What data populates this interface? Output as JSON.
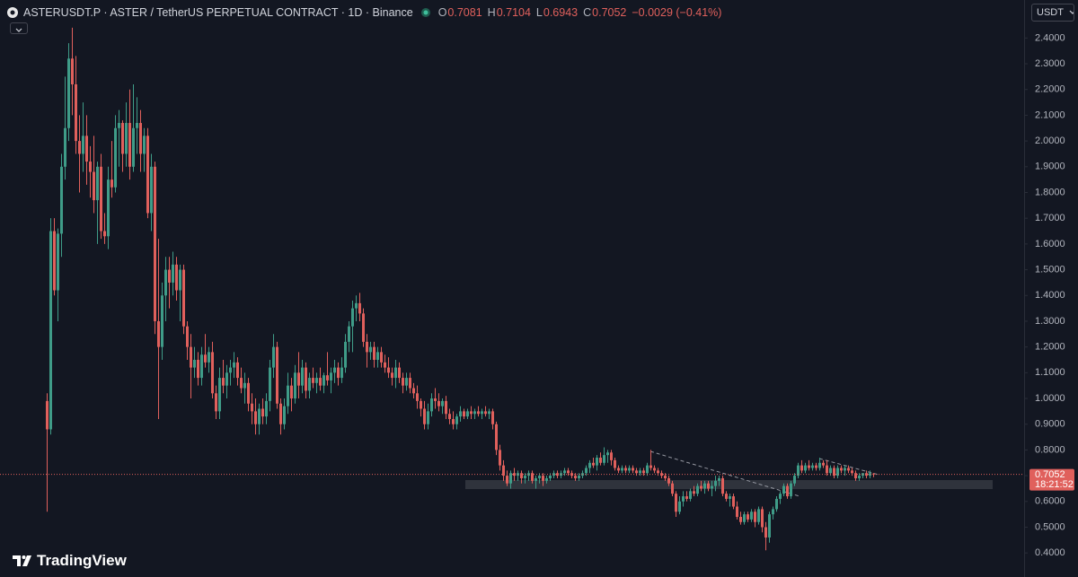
{
  "chart_data": {
    "type": "candlestick",
    "title": "ASTERUSDT.P · ASTER / TetherUS PERPETUAL CONTRACT · 1D · Binance",
    "ohlc_labels": [
      "O",
      "H",
      "L",
      "C"
    ],
    "change": "−0.0029 (−0.41%)",
    "countdown": "18:21:52",
    "currency": "USDT",
    "brand": "TradingView",
    "up_color": "#3f9c88",
    "down_color": "#e0605c",
    "ylim": [
      0.31,
      2.45
    ],
    "yticks": [
      {
        "value": 0.4,
        "label": "0.4000"
      },
      {
        "value": 0.5,
        "label": "0.5000"
      },
      {
        "value": 0.6,
        "label": "0.6000"
      },
      {
        "value": 0.7,
        "label": "0.7000"
      },
      {
        "value": 0.8,
        "label": "0.8000"
      },
      {
        "value": 0.9,
        "label": "0.9000"
      },
      {
        "value": 1.0,
        "label": "1.0000"
      },
      {
        "value": 1.1,
        "label": "1.1000"
      },
      {
        "value": 1.2,
        "label": "1.2000"
      },
      {
        "value": 1.3,
        "label": "1.3000"
      },
      {
        "value": 1.4,
        "label": "1.4000"
      },
      {
        "value": 1.5,
        "label": "1.5000"
      },
      {
        "value": 1.6,
        "label": "1.6000"
      },
      {
        "value": 1.7,
        "label": "1.7000"
      },
      {
        "value": 1.8,
        "label": "1.8000"
      },
      {
        "value": 1.9,
        "label": "1.9000"
      },
      {
        "value": 2.0,
        "label": "2.0000"
      },
      {
        "value": 2.1,
        "label": "2.1000"
      },
      {
        "value": 2.2,
        "label": "2.2000"
      },
      {
        "value": 2.3,
        "label": "2.3000"
      },
      {
        "value": 2.4,
        "label": "2.4000"
      }
    ],
    "open": [
      0.99,
      0.88,
      1.65,
      1.42,
      1.64,
      1.9,
      2.05,
      2.32,
      2.22,
      2.0,
      1.95,
      2.02,
      1.92,
      1.88,
      1.77,
      1.9,
      1.65,
      1.63,
      1.85,
      1.82,
      2.05,
      2.07,
      1.95,
      2.07,
      1.9,
      2.05,
      2.07,
      1.95,
      2.02,
      1.72,
      1.9,
      1.3,
      1.2,
      1.4,
      1.5,
      1.45,
      1.52,
      1.42,
      1.5,
      1.28,
      1.2,
      1.12,
      1.15,
      1.08,
      1.17,
      1.14,
      1.18,
      1.02,
      0.95,
      1.08,
      1.05,
      1.1,
      1.12,
      1.14,
      1.08,
      1.04,
      1.06,
      0.98,
      0.95,
      0.9,
      0.96,
      0.93,
      0.99,
      1.12,
      1.2,
      0.98,
      0.9,
      0.97,
      1.05,
      1.0,
      1.1,
      1.05,
      1.12,
      1.03,
      1.08,
      1.06,
      1.08,
      1.05,
      1.09,
      1.07,
      1.1,
      1.12,
      1.08,
      1.12,
      1.22,
      1.28,
      1.35,
      1.37,
      1.33,
      1.22,
      1.18,
      1.2,
      1.15,
      1.18,
      1.14,
      1.12,
      1.1,
      1.08,
      1.12,
      1.08,
      1.05,
      1.08,
      1.04,
      1.02,
      0.99,
      0.96,
      0.9,
      0.95,
      1.0,
      0.99,
      0.97,
      0.99,
      0.94,
      0.92,
      0.9,
      0.93,
      0.95,
      0.93,
      0.95,
      0.94,
      0.95,
      0.94,
      0.95,
      0.94,
      0.95,
      0.9,
      0.8,
      0.74,
      0.7,
      0.67,
      0.71,
      0.7,
      0.71,
      0.69,
      0.7,
      0.71,
      0.68,
      0.69,
      0.7,
      0.68,
      0.69,
      0.7,
      0.71,
      0.7,
      0.71,
      0.72,
      0.71,
      0.7,
      0.69,
      0.7,
      0.71,
      0.73,
      0.75,
      0.74,
      0.77,
      0.75,
      0.78,
      0.79,
      0.76,
      0.73,
      0.72,
      0.73,
      0.72,
      0.73,
      0.72,
      0.71,
      0.72,
      0.71,
      0.74,
      0.73,
      0.72,
      0.71,
      0.7,
      0.69,
      0.67,
      0.63,
      0.56,
      0.6,
      0.62,
      0.61,
      0.64,
      0.63,
      0.66,
      0.65,
      0.67,
      0.65,
      0.66,
      0.68,
      0.69,
      0.63,
      0.61,
      0.62,
      0.58,
      0.54,
      0.52,
      0.55,
      0.53,
      0.56,
      0.52,
      0.57,
      0.5,
      0.46,
      0.55,
      0.57,
      0.61,
      0.63,
      0.66,
      0.62,
      0.67,
      0.7,
      0.74,
      0.72,
      0.74,
      0.73,
      0.74,
      0.73,
      0.75,
      0.74,
      0.71,
      0.73,
      0.7,
      0.73,
      0.72,
      0.73,
      0.72,
      0.71,
      0.69,
      0.7,
      0.71,
      0.7,
      0.7081
    ],
    "high": [
      1.02,
      1.7,
      1.7,
      1.66,
      1.95,
      2.25,
      2.38,
      2.44,
      2.33,
      2.1,
      2.15,
      2.1,
      1.98,
      2.02,
      1.92,
      1.95,
      1.72,
      1.9,
      2.0,
      2.1,
      2.12,
      2.08,
      2.15,
      2.2,
      2.22,
      2.17,
      2.12,
      2.05,
      2.05,
      1.95,
      1.92,
      1.62,
      1.45,
      1.55,
      1.55,
      1.57,
      1.55,
      1.52,
      1.52,
      1.3,
      1.25,
      1.2,
      1.18,
      1.2,
      1.25,
      1.2,
      1.22,
      1.05,
      1.12,
      1.15,
      1.13,
      1.15,
      1.18,
      1.16,
      1.12,
      1.1,
      1.08,
      1.02,
      1.0,
      0.98,
      1.0,
      1.02,
      1.15,
      1.25,
      1.22,
      1.0,
      1.0,
      1.1,
      1.08,
      1.13,
      1.18,
      1.15,
      1.14,
      1.1,
      1.12,
      1.1,
      1.12,
      1.1,
      1.18,
      1.12,
      1.15,
      1.14,
      1.16,
      1.25,
      1.3,
      1.38,
      1.4,
      1.41,
      1.35,
      1.25,
      1.22,
      1.22,
      1.2,
      1.2,
      1.17,
      1.16,
      1.12,
      1.15,
      1.14,
      1.1,
      1.1,
      1.1,
      1.06,
      1.05,
      1.0,
      0.99,
      0.98,
      1.02,
      1.04,
      1.02,
      1.0,
      1.01,
      0.96,
      0.95,
      0.94,
      0.97,
      0.96,
      0.96,
      0.97,
      0.96,
      0.97,
      0.96,
      0.97,
      0.96,
      0.96,
      0.91,
      0.82,
      0.76,
      0.72,
      0.72,
      0.73,
      0.72,
      0.72,
      0.71,
      0.72,
      0.72,
      0.7,
      0.71,
      0.71,
      0.7,
      0.71,
      0.72,
      0.72,
      0.72,
      0.73,
      0.73,
      0.72,
      0.71,
      0.71,
      0.72,
      0.74,
      0.76,
      0.77,
      0.78,
      0.79,
      0.81,
      0.8,
      0.8,
      0.77,
      0.74,
      0.74,
      0.74,
      0.74,
      0.74,
      0.73,
      0.73,
      0.73,
      0.75,
      0.8,
      0.74,
      0.73,
      0.72,
      0.71,
      0.7,
      0.68,
      0.64,
      0.62,
      0.64,
      0.64,
      0.65,
      0.66,
      0.67,
      0.68,
      0.68,
      0.68,
      0.68,
      0.7,
      0.7,
      0.7,
      0.64,
      0.63,
      0.63,
      0.6,
      0.56,
      0.56,
      0.56,
      0.57,
      0.57,
      0.58,
      0.58,
      0.52,
      0.56,
      0.58,
      0.62,
      0.64,
      0.67,
      0.67,
      0.68,
      0.71,
      0.75,
      0.76,
      0.75,
      0.76,
      0.75,
      0.75,
      0.77,
      0.76,
      0.76,
      0.74,
      0.74,
      0.74,
      0.74,
      0.74,
      0.74,
      0.73,
      0.72,
      0.71,
      0.71,
      0.72,
      0.72,
      0.7104
    ],
    "low": [
      0.56,
      0.86,
      1.4,
      1.3,
      1.55,
      1.85,
      2.0,
      2.1,
      1.95,
      1.8,
      1.88,
      1.83,
      1.78,
      1.72,
      1.6,
      1.62,
      1.6,
      1.58,
      1.78,
      1.8,
      1.9,
      1.88,
      1.9,
      1.85,
      1.88,
      1.95,
      1.88,
      1.88,
      1.7,
      1.65,
      1.25,
      0.92,
      1.15,
      1.3,
      1.35,
      1.4,
      1.38,
      1.3,
      1.25,
      1.15,
      1.0,
      1.08,
      1.05,
      1.05,
      1.12,
      1.1,
      1.0,
      0.92,
      0.92,
      1.02,
      1.0,
      1.05,
      1.08,
      1.05,
      1.02,
      0.98,
      0.95,
      0.9,
      0.86,
      0.86,
      0.9,
      0.9,
      0.95,
      1.08,
      0.96,
      0.86,
      0.88,
      0.94,
      0.95,
      0.98,
      1.0,
      1.02,
      1.0,
      1.0,
      1.04,
      1.02,
      1.03,
      1.02,
      1.05,
      1.02,
      1.06,
      1.05,
      1.06,
      1.1,
      1.18,
      1.18,
      1.3,
      1.3,
      1.2,
      1.12,
      1.15,
      1.12,
      1.12,
      1.12,
      1.1,
      1.08,
      1.05,
      1.04,
      1.06,
      1.02,
      1.03,
      1.02,
      1.0,
      0.96,
      0.93,
      0.88,
      0.88,
      0.93,
      0.96,
      0.95,
      0.94,
      0.92,
      0.9,
      0.88,
      0.88,
      0.91,
      0.92,
      0.92,
      0.92,
      0.92,
      0.93,
      0.92,
      0.93,
      0.92,
      0.88,
      0.78,
      0.72,
      0.68,
      0.66,
      0.65,
      0.68,
      0.68,
      0.67,
      0.67,
      0.68,
      0.67,
      0.65,
      0.67,
      0.66,
      0.67,
      0.68,
      0.69,
      0.69,
      0.69,
      0.7,
      0.7,
      0.69,
      0.68,
      0.68,
      0.69,
      0.7,
      0.71,
      0.73,
      0.72,
      0.74,
      0.74,
      0.75,
      0.74,
      0.72,
      0.71,
      0.71,
      0.71,
      0.71,
      0.71,
      0.7,
      0.7,
      0.7,
      0.7,
      0.72,
      0.71,
      0.7,
      0.69,
      0.68,
      0.66,
      0.62,
      0.54,
      0.55,
      0.58,
      0.6,
      0.6,
      0.62,
      0.62,
      0.64,
      0.63,
      0.64,
      0.62,
      0.64,
      0.66,
      0.62,
      0.6,
      0.58,
      0.57,
      0.53,
      0.51,
      0.51,
      0.52,
      0.52,
      0.5,
      0.51,
      0.48,
      0.41,
      0.44,
      0.53,
      0.56,
      0.59,
      0.62,
      0.61,
      0.61,
      0.66,
      0.69,
      0.71,
      0.71,
      0.72,
      0.72,
      0.72,
      0.72,
      0.73,
      0.7,
      0.7,
      0.69,
      0.69,
      0.71,
      0.7,
      0.71,
      0.7,
      0.68,
      0.68,
      0.69,
      0.69,
      0.69,
      0.6943
    ],
    "close": [
      0.88,
      1.65,
      1.42,
      1.64,
      1.9,
      2.05,
      2.32,
      2.22,
      2.0,
      1.95,
      2.02,
      1.92,
      1.88,
      1.77,
      1.9,
      1.65,
      1.63,
      1.85,
      1.82,
      2.05,
      2.07,
      1.95,
      2.07,
      1.9,
      2.05,
      2.07,
      1.95,
      2.02,
      1.72,
      1.9,
      1.3,
      1.2,
      1.4,
      1.5,
      1.45,
      1.52,
      1.42,
      1.5,
      1.28,
      1.2,
      1.12,
      1.15,
      1.08,
      1.17,
      1.14,
      1.18,
      1.02,
      0.95,
      1.08,
      1.05,
      1.1,
      1.12,
      1.14,
      1.08,
      1.04,
      1.06,
      0.98,
      0.95,
      0.9,
      0.96,
      0.93,
      0.99,
      1.12,
      1.2,
      0.98,
      0.9,
      0.97,
      1.05,
      1.0,
      1.1,
      1.05,
      1.12,
      1.03,
      1.08,
      1.06,
      1.08,
      1.05,
      1.09,
      1.07,
      1.1,
      1.12,
      1.08,
      1.12,
      1.22,
      1.28,
      1.35,
      1.37,
      1.33,
      1.22,
      1.18,
      1.2,
      1.15,
      1.18,
      1.14,
      1.12,
      1.1,
      1.08,
      1.12,
      1.08,
      1.05,
      1.08,
      1.04,
      1.02,
      0.99,
      0.96,
      0.9,
      0.95,
      1.0,
      0.99,
      0.97,
      0.99,
      0.94,
      0.92,
      0.9,
      0.93,
      0.95,
      0.93,
      0.95,
      0.94,
      0.95,
      0.94,
      0.95,
      0.94,
      0.95,
      0.9,
      0.8,
      0.74,
      0.7,
      0.67,
      0.71,
      0.7,
      0.71,
      0.69,
      0.7,
      0.71,
      0.68,
      0.69,
      0.7,
      0.68,
      0.69,
      0.7,
      0.71,
      0.7,
      0.71,
      0.72,
      0.71,
      0.7,
      0.69,
      0.7,
      0.71,
      0.73,
      0.75,
      0.74,
      0.77,
      0.75,
      0.78,
      0.79,
      0.76,
      0.73,
      0.72,
      0.73,
      0.72,
      0.73,
      0.72,
      0.71,
      0.72,
      0.71,
      0.74,
      0.73,
      0.72,
      0.71,
      0.7,
      0.69,
      0.67,
      0.63,
      0.56,
      0.6,
      0.62,
      0.61,
      0.64,
      0.63,
      0.66,
      0.65,
      0.67,
      0.65,
      0.66,
      0.68,
      0.69,
      0.63,
      0.61,
      0.62,
      0.58,
      0.54,
      0.52,
      0.55,
      0.53,
      0.56,
      0.52,
      0.57,
      0.5,
      0.46,
      0.55,
      0.57,
      0.61,
      0.63,
      0.66,
      0.62,
      0.67,
      0.7,
      0.74,
      0.72,
      0.74,
      0.73,
      0.74,
      0.73,
      0.75,
      0.74,
      0.71,
      0.73,
      0.7,
      0.73,
      0.72,
      0.73,
      0.72,
      0.71,
      0.69,
      0.7,
      0.71,
      0.7,
      0.71,
      0.7052
    ]
  }
}
